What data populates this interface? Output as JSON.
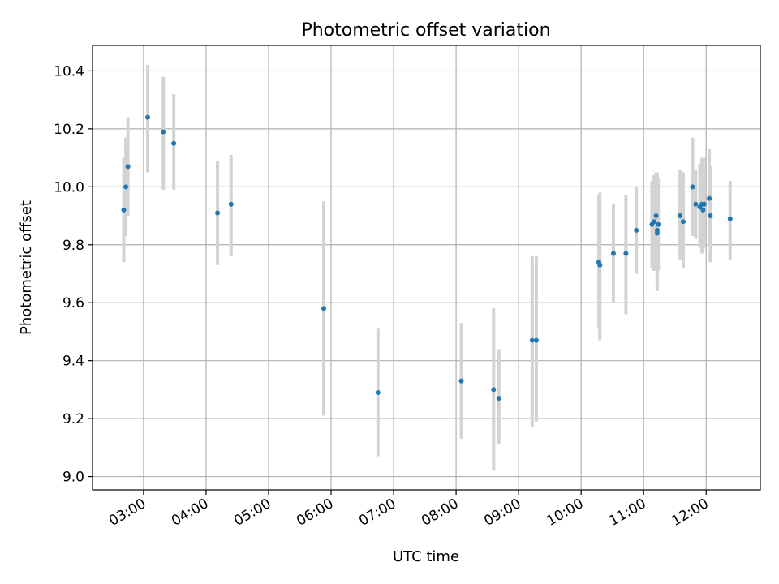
{
  "chart_data": {
    "type": "scatter",
    "title": "Photometric offset variation",
    "xlabel": "UTC time",
    "ylabel": "Photometric offset",
    "xlim": [
      "02:11",
      "12:52"
    ],
    "ylim": [
      8.954,
      10.488
    ],
    "x_ticks": [
      "03:00",
      "04:00",
      "05:00",
      "06:00",
      "07:00",
      "08:00",
      "09:00",
      "10:00",
      "11:00",
      "12:00"
    ],
    "y_ticks": [
      9.0,
      9.2,
      9.4,
      9.6,
      9.8,
      10.0,
      10.2,
      10.4
    ],
    "grid": true,
    "colors": {
      "point": "#1f77b4",
      "error_bar": "#d3d3d3",
      "grid": "#b0b0b0"
    },
    "series": [
      {
        "points": [
          {
            "x": "02:41",
            "y": 9.92,
            "lo": 9.74,
            "hi": 10.1
          },
          {
            "x": "02:43",
            "y": 10.0,
            "lo": 9.83,
            "hi": 10.17
          },
          {
            "x": "02:45",
            "y": 10.07,
            "lo": 9.9,
            "hi": 10.24
          },
          {
            "x": "03:04",
            "y": 10.24,
            "lo": 10.05,
            "hi": 10.42
          },
          {
            "x": "03:19",
            "y": 10.19,
            "lo": 9.99,
            "hi": 10.38
          },
          {
            "x": "03:29",
            "y": 10.15,
            "lo": 9.99,
            "hi": 10.32
          },
          {
            "x": "04:11",
            "y": 9.91,
            "lo": 9.73,
            "hi": 10.09
          },
          {
            "x": "04:24",
            "y": 9.94,
            "lo": 9.76,
            "hi": 10.11
          },
          {
            "x": "05:53",
            "y": 9.58,
            "lo": 9.21,
            "hi": 9.95
          },
          {
            "x": "06:45",
            "y": 9.29,
            "lo": 9.07,
            "hi": 9.51
          },
          {
            "x": "08:05",
            "y": 9.33,
            "lo": 9.13,
            "hi": 9.53
          },
          {
            "x": "08:36",
            "y": 9.3,
            "lo": 9.02,
            "hi": 9.58
          },
          {
            "x": "08:41",
            "y": 9.27,
            "lo": 9.11,
            "hi": 9.44
          },
          {
            "x": "09:13",
            "y": 9.47,
            "lo": 9.17,
            "hi": 9.76
          },
          {
            "x": "09:17",
            "y": 9.47,
            "lo": 9.19,
            "hi": 9.76
          },
          {
            "x": "10:17",
            "y": 9.74,
            "lo": 9.51,
            "hi": 9.97
          },
          {
            "x": "10:18",
            "y": 9.73,
            "lo": 9.47,
            "hi": 9.98
          },
          {
            "x": "10:31",
            "y": 9.77,
            "lo": 9.6,
            "hi": 9.94
          },
          {
            "x": "10:43",
            "y": 9.77,
            "lo": 9.56,
            "hi": 9.97
          },
          {
            "x": "10:53",
            "y": 9.85,
            "lo": 9.7,
            "hi": 10.0
          },
          {
            "x": "11:08",
            "y": 9.87,
            "lo": 9.72,
            "hi": 10.02
          },
          {
            "x": "11:10",
            "y": 9.88,
            "lo": 9.71,
            "hi": 10.04
          },
          {
            "x": "11:12",
            "y": 9.9,
            "lo": 9.75,
            "hi": 10.05
          },
          {
            "x": "11:13",
            "y": 9.84,
            "lo": 9.64,
            "hi": 10.04
          },
          {
            "x": "11:13",
            "y": 9.85,
            "lo": 9.66,
            "hi": 10.05
          },
          {
            "x": "11:14",
            "y": 9.87,
            "lo": 9.71,
            "hi": 10.03
          },
          {
            "x": "11:35",
            "y": 9.9,
            "lo": 9.75,
            "hi": 10.06
          },
          {
            "x": "11:38",
            "y": 9.88,
            "lo": 9.72,
            "hi": 10.05
          },
          {
            "x": "11:47",
            "y": 10.0,
            "lo": 9.83,
            "hi": 10.17
          },
          {
            "x": "11:50",
            "y": 9.94,
            "lo": 9.82,
            "hi": 10.06
          },
          {
            "x": "11:54",
            "y": 9.93,
            "lo": 9.79,
            "hi": 10.08
          },
          {
            "x": "11:56",
            "y": 9.94,
            "lo": 9.77,
            "hi": 10.1
          },
          {
            "x": "11:57",
            "y": 9.92,
            "lo": 9.78,
            "hi": 10.07
          },
          {
            "x": "11:58",
            "y": 9.94,
            "lo": 9.79,
            "hi": 10.1
          },
          {
            "x": "12:03",
            "y": 9.96,
            "lo": 9.8,
            "hi": 10.13
          },
          {
            "x": "12:04",
            "y": 9.9,
            "lo": 9.74,
            "hi": 10.07
          },
          {
            "x": "12:23",
            "y": 9.89,
            "lo": 9.75,
            "hi": 10.02
          }
        ]
      }
    ]
  }
}
